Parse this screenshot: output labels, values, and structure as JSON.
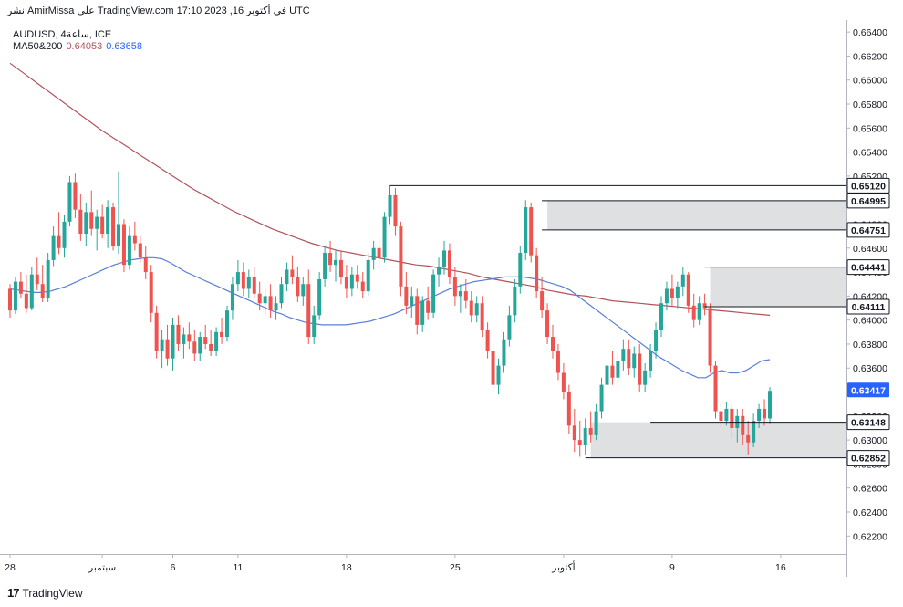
{
  "header": {
    "publish_line": "نشر AmirMissa على TradingView.com 17:10 2023 ,16 في أكتوبر UTC"
  },
  "symbol": {
    "line": "AUDUSD, 4ساعة, ICE"
  },
  "indicator": {
    "label": "MA50&200",
    "ma200_value": "0.64053",
    "ma50_value": "0.63658"
  },
  "footer": {
    "brand": "TradingView",
    "logo_icon": "tradingview-logo-icon"
  },
  "colors": {
    "bull": "#26a69a",
    "bear": "#ef5350",
    "ma50": "#5b7fd6",
    "ma200": "#b2535b",
    "zone": "#d9dadd",
    "price_badge": "#2962ff",
    "level_line": "#131722"
  },
  "chart_data": {
    "type": "candlestick",
    "title": "AUDUSD, 4ساعة, ICE",
    "y_axis_position": "right",
    "ylim": [
      0.6205,
      0.665
    ],
    "y_ticks": [
      "0.62200",
      "0.62400",
      "0.62600",
      "0.62800",
      "0.63000",
      "0.63200",
      "0.63400",
      "0.63600",
      "0.63800",
      "0.64000",
      "0.64200",
      "0.64400",
      "0.64600",
      "0.64800",
      "0.65000",
      "0.65200",
      "0.65400",
      "0.65600",
      "0.65800",
      "0.66000",
      "0.66200",
      "0.66400"
    ],
    "x_ticks": [
      {
        "label": "28",
        "bar": 0
      },
      {
        "label": "سبتمبر",
        "bar": 17
      },
      {
        "label": "6",
        "bar": 30
      },
      {
        "label": "11",
        "bar": 42
      },
      {
        "label": "18",
        "bar": 62
      },
      {
        "label": "25",
        "bar": 82
      },
      {
        "label": "أكتوبر",
        "bar": 102
      },
      {
        "label": "9",
        "bar": 122
      },
      {
        "label": "16",
        "bar": 142
      }
    ],
    "price_levels": [
      {
        "label": "0.65120",
        "value": 0.6512,
        "from_bar": 70
      },
      {
        "label": "0.64995",
        "value": 0.64995,
        "from_bar": 98
      },
      {
        "label": "0.64751",
        "value": 0.64751,
        "from_bar": 98
      },
      {
        "label": "0.64441",
        "value": 0.64441,
        "from_bar": 128
      },
      {
        "label": "0.64111",
        "value": 0.64111,
        "from_bar": 128
      },
      {
        "label": "0.63148",
        "value": 0.63148,
        "from_bar": 118
      },
      {
        "label": "0.62852",
        "value": 0.62852,
        "from_bar": 106
      }
    ],
    "current_price": {
      "label": "0.63417",
      "value": 0.63417
    },
    "zones": [
      {
        "from_bar": 99,
        "to_bar": 154,
        "high": 0.64995,
        "low": 0.64751
      },
      {
        "from_bar": 129,
        "to_bar": 154,
        "high": 0.64441,
        "low": 0.64111
      },
      {
        "from_bar": 107,
        "to_bar": 154,
        "high": 0.63148,
        "low": 0.62852
      }
    ],
    "candles": [
      [
        0.6426,
        0.643,
        0.6402,
        0.6408
      ],
      [
        0.6408,
        0.6436,
        0.6405,
        0.6432
      ],
      [
        0.6432,
        0.644,
        0.6418,
        0.6422
      ],
      [
        0.6422,
        0.6438,
        0.6406,
        0.641
      ],
      [
        0.641,
        0.6444,
        0.6408,
        0.6438
      ],
      [
        0.6438,
        0.6452,
        0.6425,
        0.643
      ],
      [
        0.643,
        0.6446,
        0.6415,
        0.6418
      ],
      [
        0.6418,
        0.6456,
        0.6415,
        0.645
      ],
      [
        0.645,
        0.6478,
        0.6445,
        0.647
      ],
      [
        0.647,
        0.649,
        0.6455,
        0.646
      ],
      [
        0.646,
        0.6488,
        0.6452,
        0.6482
      ],
      [
        0.6482,
        0.652,
        0.6478,
        0.6515
      ],
      [
        0.6515,
        0.6522,
        0.6485,
        0.6492
      ],
      [
        0.6492,
        0.6505,
        0.6466,
        0.6472
      ],
      [
        0.6472,
        0.6498,
        0.6462,
        0.649
      ],
      [
        0.649,
        0.6508,
        0.647,
        0.6476
      ],
      [
        0.6476,
        0.6492,
        0.6458,
        0.6486
      ],
      [
        0.6486,
        0.6496,
        0.6468,
        0.6472
      ],
      [
        0.6472,
        0.65,
        0.646,
        0.6494
      ],
      [
        0.6494,
        0.6498,
        0.6458,
        0.6462
      ],
      [
        0.6462,
        0.6524,
        0.6455,
        0.648
      ],
      [
        0.648,
        0.6484,
        0.644,
        0.6446
      ],
      [
        0.6446,
        0.6478,
        0.6442,
        0.647
      ],
      [
        0.647,
        0.6482,
        0.6458,
        0.6464
      ],
      [
        0.6464,
        0.647,
        0.6448,
        0.6452
      ],
      [
        0.6452,
        0.6462,
        0.6434,
        0.644
      ],
      [
        0.644,
        0.6446,
        0.6398,
        0.6406
      ],
      [
        0.6406,
        0.6412,
        0.6368,
        0.6374
      ],
      [
        0.6374,
        0.6392,
        0.636,
        0.6384
      ],
      [
        0.6384,
        0.6396,
        0.6362,
        0.6368
      ],
      [
        0.6368,
        0.6402,
        0.6358,
        0.6396
      ],
      [
        0.6396,
        0.6404,
        0.6374,
        0.638
      ],
      [
        0.638,
        0.6394,
        0.6368,
        0.6388
      ],
      [
        0.6388,
        0.6398,
        0.6376,
        0.6382
      ],
      [
        0.6382,
        0.6392,
        0.6366,
        0.6372
      ],
      [
        0.6372,
        0.639,
        0.6366,
        0.6386
      ],
      [
        0.6386,
        0.6396,
        0.6376,
        0.638
      ],
      [
        0.638,
        0.6392,
        0.637,
        0.6374
      ],
      [
        0.6374,
        0.6394,
        0.637,
        0.639
      ],
      [
        0.639,
        0.6402,
        0.638,
        0.6386
      ],
      [
        0.6386,
        0.6412,
        0.6382,
        0.6408
      ],
      [
        0.6408,
        0.6436,
        0.64,
        0.643
      ],
      [
        0.643,
        0.645,
        0.6424,
        0.644
      ],
      [
        0.644,
        0.6448,
        0.642,
        0.6426
      ],
      [
        0.6426,
        0.6442,
        0.6418,
        0.6436
      ],
      [
        0.6436,
        0.6444,
        0.6418,
        0.6422
      ],
      [
        0.6422,
        0.6432,
        0.6408,
        0.6414
      ],
      [
        0.6414,
        0.6426,
        0.6405,
        0.642
      ],
      [
        0.642,
        0.643,
        0.6402,
        0.6408
      ],
      [
        0.6408,
        0.642,
        0.64,
        0.6414
      ],
      [
        0.6414,
        0.6436,
        0.641,
        0.643
      ],
      [
        0.643,
        0.6448,
        0.6424,
        0.6442
      ],
      [
        0.6442,
        0.6454,
        0.643,
        0.6436
      ],
      [
        0.6436,
        0.6444,
        0.6415,
        0.642
      ],
      [
        0.642,
        0.6436,
        0.6412,
        0.643
      ],
      [
        0.643,
        0.6442,
        0.638,
        0.6386
      ],
      [
        0.6386,
        0.6412,
        0.638,
        0.6404
      ],
      [
        0.6404,
        0.644,
        0.64,
        0.6434
      ],
      [
        0.6434,
        0.6462,
        0.6428,
        0.6456
      ],
      [
        0.6456,
        0.6466,
        0.644,
        0.6446
      ],
      [
        0.6446,
        0.6458,
        0.6432,
        0.645
      ],
      [
        0.645,
        0.6458,
        0.643,
        0.6436
      ],
      [
        0.6436,
        0.6446,
        0.6418,
        0.6426
      ],
      [
        0.6426,
        0.6444,
        0.642,
        0.6438
      ],
      [
        0.6438,
        0.6446,
        0.6426,
        0.6432
      ],
      [
        0.6432,
        0.644,
        0.6418,
        0.6424
      ],
      [
        0.6424,
        0.6456,
        0.642,
        0.645
      ],
      [
        0.645,
        0.6466,
        0.6442,
        0.646
      ],
      [
        0.646,
        0.6468,
        0.6445,
        0.6452
      ],
      [
        0.6452,
        0.649,
        0.6448,
        0.6486
      ],
      [
        0.6486,
        0.6512,
        0.648,
        0.6504
      ],
      [
        0.6504,
        0.651,
        0.647,
        0.6478
      ],
      [
        0.6478,
        0.6482,
        0.642,
        0.6428
      ],
      [
        0.6428,
        0.644,
        0.6405,
        0.6412
      ],
      [
        0.6412,
        0.6428,
        0.6402,
        0.642
      ],
      [
        0.642,
        0.6426,
        0.6388,
        0.6396
      ],
      [
        0.6396,
        0.642,
        0.639,
        0.6416
      ],
      [
        0.6416,
        0.6428,
        0.64,
        0.6406
      ],
      [
        0.6406,
        0.6442,
        0.6402,
        0.6438
      ],
      [
        0.6438,
        0.6452,
        0.6428,
        0.6444
      ],
      [
        0.6444,
        0.6466,
        0.6438,
        0.6458
      ],
      [
        0.6458,
        0.6464,
        0.643,
        0.6436
      ],
      [
        0.6436,
        0.6444,
        0.6412,
        0.642
      ],
      [
        0.642,
        0.643,
        0.6406,
        0.6424
      ],
      [
        0.6424,
        0.6434,
        0.641,
        0.6416
      ],
      [
        0.6416,
        0.6424,
        0.6398,
        0.6404
      ],
      [
        0.6404,
        0.642,
        0.6398,
        0.6414
      ],
      [
        0.6414,
        0.642,
        0.6386,
        0.6392
      ],
      [
        0.6392,
        0.6398,
        0.6368,
        0.6374
      ],
      [
        0.6374,
        0.638,
        0.634,
        0.6346
      ],
      [
        0.6346,
        0.6368,
        0.6338,
        0.6362
      ],
      [
        0.6362,
        0.639,
        0.6356,
        0.6384
      ],
      [
        0.6384,
        0.6412,
        0.6378,
        0.6404
      ],
      [
        0.6404,
        0.6434,
        0.6398,
        0.6428
      ],
      [
        0.6428,
        0.6462,
        0.6422,
        0.6456
      ],
      [
        0.6456,
        0.65,
        0.645,
        0.6494
      ],
      [
        0.6494,
        0.6498,
        0.6448,
        0.6454
      ],
      [
        0.6454,
        0.646,
        0.6418,
        0.6424
      ],
      [
        0.6424,
        0.6436,
        0.6402,
        0.6408
      ],
      [
        0.6408,
        0.6414,
        0.638,
        0.6386
      ],
      [
        0.6386,
        0.6396,
        0.6368,
        0.6374
      ],
      [
        0.6374,
        0.638,
        0.635,
        0.6356
      ],
      [
        0.6356,
        0.6364,
        0.6334,
        0.634
      ],
      [
        0.634,
        0.6346,
        0.6305,
        0.6312
      ],
      [
        0.6312,
        0.6326,
        0.629,
        0.63
      ],
      [
        0.63,
        0.6316,
        0.6286,
        0.6296
      ],
      [
        0.6296,
        0.6318,
        0.6288,
        0.631
      ],
      [
        0.631,
        0.6324,
        0.6298,
        0.6304
      ],
      [
        0.6304,
        0.633,
        0.63,
        0.6324
      ],
      [
        0.6324,
        0.6352,
        0.6318,
        0.6346
      ],
      [
        0.6346,
        0.637,
        0.634,
        0.6362
      ],
      [
        0.6362,
        0.6374,
        0.6346,
        0.6352
      ],
      [
        0.6352,
        0.6372,
        0.6346,
        0.6366
      ],
      [
        0.6366,
        0.6384,
        0.6358,
        0.6376
      ],
      [
        0.6376,
        0.6384,
        0.6354,
        0.636
      ],
      [
        0.636,
        0.6378,
        0.6352,
        0.6372
      ],
      [
        0.6372,
        0.638,
        0.634,
        0.6346
      ],
      [
        0.6346,
        0.6364,
        0.634,
        0.6358
      ],
      [
        0.6358,
        0.638,
        0.6352,
        0.6374
      ],
      [
        0.6374,
        0.6398,
        0.6368,
        0.6392
      ],
      [
        0.6392,
        0.642,
        0.6386,
        0.6414
      ],
      [
        0.6414,
        0.6432,
        0.6408,
        0.6426
      ],
      [
        0.6426,
        0.6438,
        0.6412,
        0.6418
      ],
      [
        0.6418,
        0.6432,
        0.641,
        0.6428
      ],
      [
        0.6428,
        0.6444,
        0.642,
        0.6438
      ],
      [
        0.6438,
        0.644,
        0.6406,
        0.6412
      ],
      [
        0.6412,
        0.6422,
        0.6394,
        0.64
      ],
      [
        0.64,
        0.642,
        0.6396,
        0.6414
      ],
      [
        0.6414,
        0.6422,
        0.6404,
        0.641
      ],
      [
        0.641,
        0.6414,
        0.6356,
        0.6362
      ],
      [
        0.6362,
        0.6366,
        0.6318,
        0.6324
      ],
      [
        0.6324,
        0.633,
        0.631,
        0.6316
      ],
      [
        0.6316,
        0.6332,
        0.6312,
        0.6326
      ],
      [
        0.6326,
        0.633,
        0.6302,
        0.631
      ],
      [
        0.631,
        0.6326,
        0.6298,
        0.632
      ],
      [
        0.632,
        0.6326,
        0.6296,
        0.6304
      ],
      [
        0.6304,
        0.6316,
        0.6288,
        0.6298
      ],
      [
        0.6298,
        0.6322,
        0.6294,
        0.6316
      ],
      [
        0.6316,
        0.633,
        0.631,
        0.6326
      ],
      [
        0.6326,
        0.6334,
        0.6312,
        0.6318
      ],
      [
        0.6318,
        0.6344,
        0.6314,
        0.6341
      ]
    ],
    "ma200": [
      0.6614,
      0.6606,
      0.6598,
      0.659,
      0.6582,
      0.6574,
      0.6566,
      0.6558,
      0.6551,
      0.6544,
      0.6537,
      0.653,
      0.6523,
      0.6516,
      0.6509,
      0.6503,
      0.6497,
      0.6491,
      0.6486,
      0.6481,
      0.6476,
      0.6472,
      0.6468,
      0.6464,
      0.6461,
      0.6458,
      0.6456,
      0.6454,
      0.6452,
      0.645,
      0.6448,
      0.6446,
      0.6445,
      0.6443,
      0.6441,
      0.6439,
      0.6436,
      0.6434,
      0.6432,
      0.643,
      0.6428,
      0.6425,
      0.6423,
      0.6421,
      0.642,
      0.6418,
      0.6416,
      0.6415,
      0.6414,
      0.6413,
      0.6412,
      0.6411,
      0.641,
      0.6409,
      0.6408,
      0.6407,
      0.6406,
      0.6405,
      0.6404
    ],
    "ma50": [
      0.6426,
      0.6425,
      0.6424,
      0.6423,
      0.6423,
      0.6424,
      0.6426,
      0.6428,
      0.6431,
      0.6434,
      0.6437,
      0.644,
      0.6443,
      0.6446,
      0.6448,
      0.645,
      0.6451,
      0.6452,
      0.6452,
      0.6451,
      0.6448,
      0.6444,
      0.644,
      0.6437,
      0.6434,
      0.6431,
      0.6428,
      0.6425,
      0.6422,
      0.6419,
      0.6416,
      0.6413,
      0.641,
      0.6407,
      0.6405,
      0.6402,
      0.64,
      0.6398,
      0.6397,
      0.6396,
      0.6396,
      0.6396,
      0.6396,
      0.6397,
      0.6398,
      0.6399,
      0.6401,
      0.6403,
      0.6405,
      0.6408,
      0.6411,
      0.6414,
      0.6417,
      0.642,
      0.6423,
      0.6426,
      0.6428,
      0.643,
      0.6432,
      0.6433,
      0.6434,
      0.6435,
      0.6436,
      0.6436,
      0.6436,
      0.6435,
      0.6434,
      0.6432,
      0.643,
      0.6428,
      0.6425,
      0.642,
      0.6415,
      0.641,
      0.6405,
      0.64,
      0.6395,
      0.639,
      0.6385,
      0.638,
      0.6375,
      0.637,
      0.6366,
      0.6362,
      0.6358,
      0.6355,
      0.6352,
      0.6352,
      0.6356,
      0.6358,
      0.6356,
      0.6356,
      0.6358,
      0.6362,
      0.6366,
      0.6367
    ]
  }
}
